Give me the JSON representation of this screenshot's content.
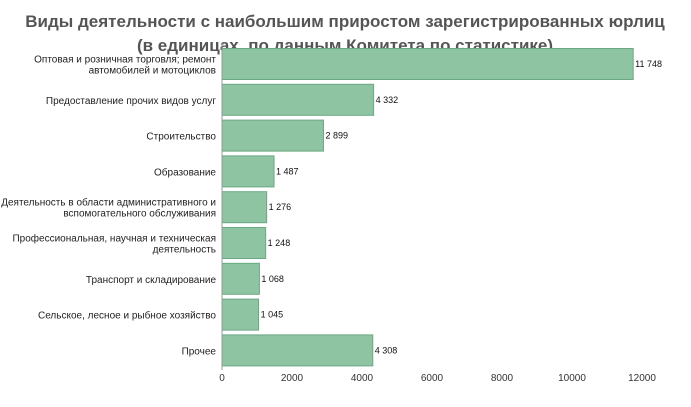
{
  "chart_data": {
    "type": "bar",
    "orientation": "horizontal",
    "title": "Виды деятельности с наибольшим приростом зарегистрированных юрлиц",
    "subtitle": "(в единицах, по данным Комитета по статистике)",
    "categories": [
      [
        "Оптовая и розничная торговля; ремонт",
        "автомобилей и мотоциклов"
      ],
      [
        "Предоставление прочих видов услуг"
      ],
      [
        "Строительство"
      ],
      [
        "Образование"
      ],
      [
        "Деятельность в области административного и",
        "вспомогательного обслуживания"
      ],
      [
        "Профессиональная, научная и техническая",
        "деятельность"
      ],
      [
        "Транспорт и складирование"
      ],
      [
        "Сельское, лесное и рыбное хозяйство"
      ],
      [
        "Прочее"
      ]
    ],
    "values": [
      11748,
      4332,
      2899,
      1487,
      1276,
      1248,
      1068,
      1045,
      4308
    ],
    "value_labels": [
      "11 748",
      "4 332",
      "2 899",
      "1 487",
      "1 276",
      "1 248",
      "1 068",
      "1 045",
      "4 308"
    ],
    "xlim": [
      0,
      12000
    ],
    "xticks": [
      0,
      2000,
      4000,
      6000,
      8000,
      10000,
      12000
    ],
    "bar_color": "#8fc4a3",
    "bar_edge_color": "#6aa884",
    "grid": false,
    "legend": "none"
  }
}
